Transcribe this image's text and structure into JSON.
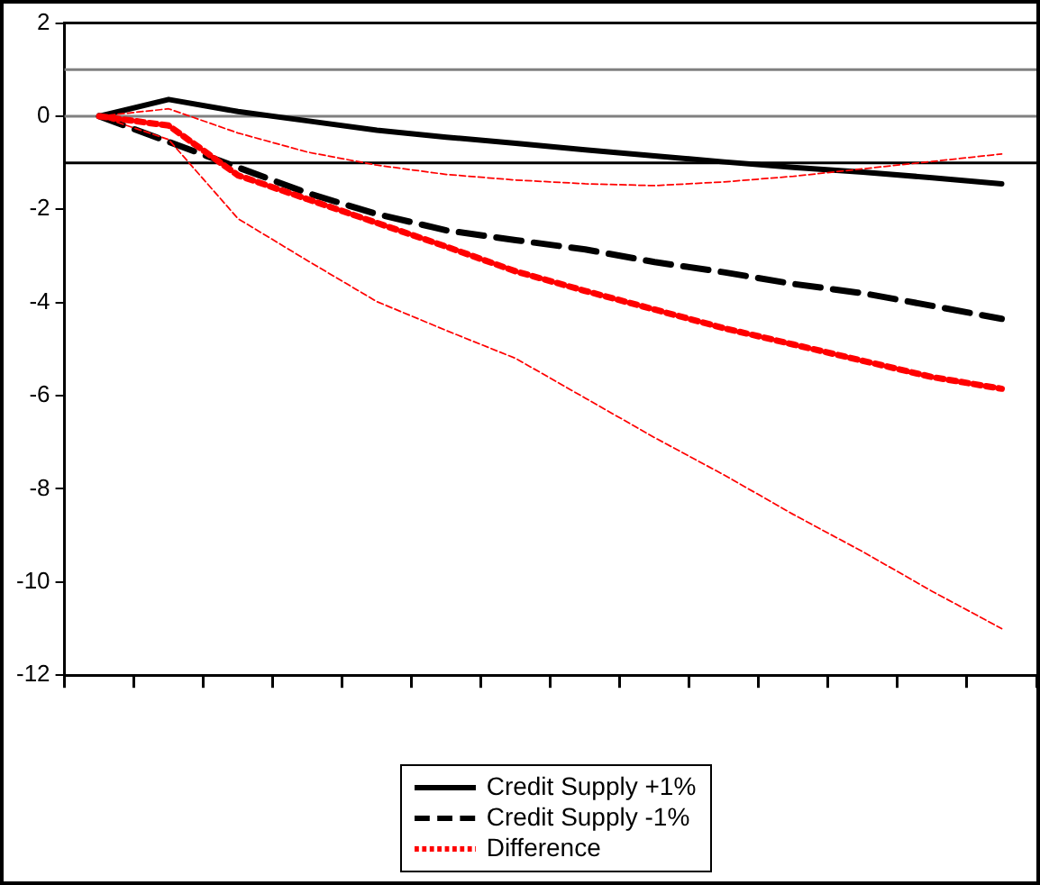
{
  "chart_data": {
    "type": "line",
    "categories": [
      null,
      null,
      null,
      null,
      null,
      null,
      null,
      null,
      null,
      null,
      null,
      null,
      null,
      null
    ],
    "series": [
      {
        "name": "Credit Supply +1%",
        "color": "#000000",
        "line_style": "solid",
        "values": [
          0,
          0.36,
          0.1,
          -0.1,
          -0.3,
          -0.45,
          -0.58,
          -0.72,
          -0.85,
          -0.98,
          -1.1,
          -1.2,
          -1.32,
          -1.45
        ]
      },
      {
        "name": "Credit Supply -1%",
        "color": "#000000",
        "line_style": "dashed",
        "values": [
          0,
          -0.55,
          -1.1,
          -1.65,
          -2.1,
          -2.45,
          -2.66,
          -2.86,
          -3.13,
          -3.35,
          -3.6,
          -3.8,
          -4.07,
          -4.35
        ]
      },
      {
        "name": "Difference",
        "color": "#ff0000",
        "line_style": "dotted",
        "values": [
          0,
          -0.2,
          -1.27,
          -1.78,
          -2.29,
          -2.8,
          -3.33,
          -3.75,
          -4.15,
          -4.55,
          -4.9,
          -5.25,
          -5.6,
          -5.85
        ]
      },
      {
        "color": "#ff0000",
        "line_style": "dashed",
        "values": [
          0,
          -0.5,
          -2.2,
          -3.1,
          -3.98,
          -4.6,
          -5.2,
          -6.05,
          -6.9,
          -7.7,
          -8.55,
          -9.35,
          -10.2,
          -11.0
        ]
      },
      {
        "color": "#ff0000",
        "line_style": "dashed",
        "values": [
          0,
          0.16,
          -0.36,
          -0.77,
          -1.05,
          -1.25,
          -1.37,
          -1.45,
          -1.49,
          -1.41,
          -1.29,
          -1.13,
          -0.97,
          -0.81
        ]
      }
    ],
    "ylim": [
      -12,
      2
    ],
    "yticks": [
      -12,
      -10,
      -8,
      -6,
      -4,
      -2,
      0,
      2
    ],
    "ref_lines": [
      {
        "axis": "y",
        "value": 1,
        "color": "#808080"
      },
      {
        "axis": "y",
        "value": 0,
        "color": "#808080"
      },
      {
        "axis": "y",
        "value": -1,
        "color": "#000000"
      }
    ],
    "legend": "bottom"
  }
}
